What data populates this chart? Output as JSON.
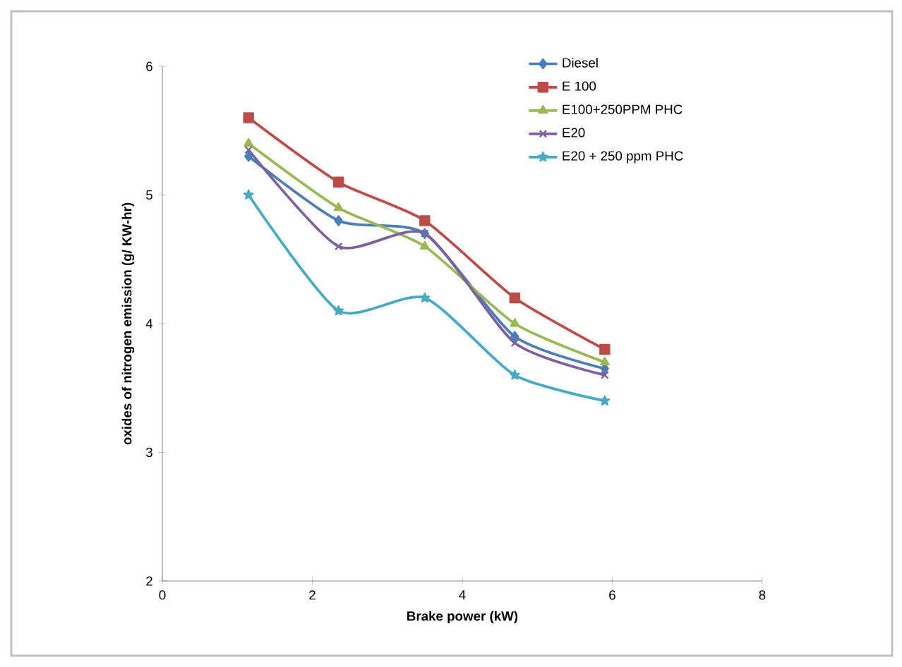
{
  "chart_data": {
    "type": "line",
    "xlabel": "Brake power (kW)",
    "ylabel": "oxides of nitrogen emission (g/ KW-hr)",
    "x": [
      1.15,
      2.35,
      3.5,
      4.7,
      5.9
    ],
    "series": [
      {
        "name": "Diesel",
        "color": "#4a7ebb",
        "marker": "diamond",
        "values": [
          5.3,
          4.8,
          4.7,
          3.9,
          3.65
        ]
      },
      {
        "name": "E 100",
        "color": "#be4b48",
        "marker": "square",
        "values": [
          5.6,
          5.1,
          4.8,
          4.2,
          3.8
        ]
      },
      {
        "name": "E100+250PPM PHC",
        "color": "#98b954",
        "marker": "triangle",
        "values": [
          5.4,
          4.9,
          4.6,
          4.0,
          3.7
        ]
      },
      {
        "name": "E20",
        "color": "#7d60a0",
        "marker": "cross",
        "values": [
          5.35,
          4.6,
          4.7,
          3.85,
          3.6
        ]
      },
      {
        "name": "E20 + 250 ppm PHC",
        "color": "#46aac5",
        "marker": "star",
        "values": [
          5.0,
          4.1,
          4.2,
          3.6,
          3.4
        ]
      }
    ],
    "xlim": [
      0,
      8
    ],
    "xticks": [
      0,
      2,
      4,
      6,
      8
    ],
    "ylim": [
      2,
      6
    ],
    "yticks": [
      2,
      3,
      4,
      5,
      6
    ],
    "grid": false,
    "legend": "top right"
  }
}
